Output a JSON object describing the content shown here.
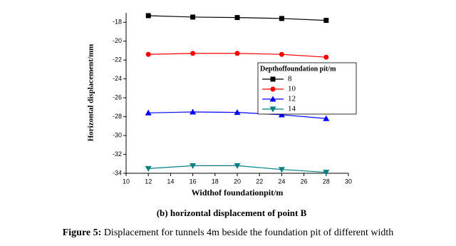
{
  "chart_data": {
    "type": "line",
    "title": " Displacement for tunnels 4m beside the foundation pit of different width",
    "caption_label": "Figure 5:",
    "subtitle": "(b) horizontal displacement of point B",
    "x_label": "Widthof foundationpit/m",
    "y_label": "Horizontal displacement/mm",
    "legend_title": "Depthoffoundation pit/m",
    "legend_position": "right",
    "x": [
      12,
      16,
      20,
      24,
      28
    ],
    "series": [
      {
        "name": "8",
        "color": "#000000",
        "marker": "square",
        "values": [
          -17.3,
          -17.45,
          -17.5,
          -17.6,
          -17.8
        ]
      },
      {
        "name": "10",
        "color": "#ff0000",
        "marker": "circle",
        "values": [
          -21.4,
          -21.3,
          -21.3,
          -21.4,
          -21.7
        ]
      },
      {
        "name": "12",
        "color": "#0000ff",
        "marker": "triangle-up",
        "values": [
          -27.6,
          -27.5,
          -27.55,
          -27.8,
          -28.2
        ]
      },
      {
        "name": "14",
        "color": "#008080",
        "marker": "triangle-down",
        "values": [
          -33.5,
          -33.2,
          -33.2,
          -33.6,
          -33.9
        ]
      }
    ],
    "xlim": [
      10,
      30
    ],
    "xticks": [
      10,
      12,
      14,
      16,
      18,
      20,
      22,
      24,
      26,
      28,
      30
    ],
    "ylim": [
      -34,
      -17
    ],
    "yticks": [
      -34,
      -32,
      -30,
      -28,
      -26,
      -24,
      -22,
      -20,
      -18
    ]
  }
}
